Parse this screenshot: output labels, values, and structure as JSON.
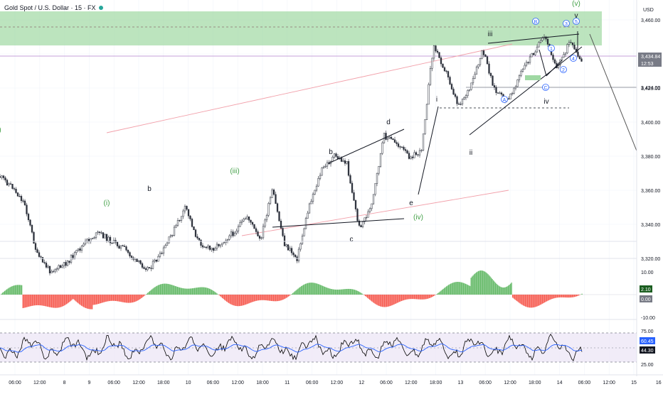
{
  "header": {
    "symbol_title": "Gold Spot / U.S. Dollar · 15 · FX",
    "currency": "USD"
  },
  "colors": {
    "zone_fill": "#9fd8a3",
    "candle": "#2a2e39",
    "pink_channel": "#f2a0aa",
    "purple_line": "#c4a0d8",
    "wave_green": "#43a047",
    "wave_blue": "#2962ff",
    "hist_pos": "#4caf50",
    "hist_neg": "#f44336",
    "rsi_line": "#000000",
    "rsi_ma": "#2962ff",
    "rsi_band": "#ede7f6"
  },
  "price_axis": {
    "ticks": [
      "3,460.00",
      "3,440.00",
      "3,420.00",
      "3,400.00",
      "3,380.00",
      "3,360.00",
      "3,340.00",
      "3,320.00"
    ],
    "last_price": "3,434.84",
    "countdown": "12:53",
    "ref_price": "3,424.00"
  },
  "osc_axis": {
    "ticks": [
      "10.00",
      "-10.00"
    ],
    "value_1": "2.10",
    "value_2": "0.00"
  },
  "rsi_axis": {
    "ticks": [
      "75.00",
      "25.00"
    ],
    "value_1": "60.45",
    "value_2": "44.30"
  },
  "time_axis": {
    "labels": [
      "06:00",
      "12:00",
      "8",
      "9",
      "06:00",
      "12:00",
      "18:00",
      "10",
      "06:00",
      "12:00",
      "18:00",
      "11",
      "06:00",
      "12:00",
      "12",
      "06:00",
      "12:00",
      "18:00",
      "13",
      "06:00",
      "12:00",
      "18:00",
      "14",
      "06:00",
      "12:00",
      "15",
      "16",
      "06:00"
    ]
  },
  "wave_labels": [
    {
      "text": "(v)",
      "color": "green"
    },
    {
      "text": "v",
      "color": "dark"
    },
    {
      "text": "iii",
      "color": "dark"
    },
    {
      "text": "B",
      "color": "blue"
    },
    {
      "text": "3",
      "color": "blue"
    },
    {
      "text": "5",
      "color": "blue"
    },
    {
      "text": "1",
      "color": "blue"
    },
    {
      "text": "4",
      "color": "blue"
    },
    {
      "text": "2",
      "color": "blue"
    },
    {
      "text": "A",
      "color": "blue"
    },
    {
      "text": "C",
      "color": "blue"
    },
    {
      "text": "iv",
      "color": "dark"
    },
    {
      "text": "i",
      "color": "dark"
    },
    {
      "text": "ii",
      "color": "dark"
    },
    {
      "text": "d",
      "color": "dark"
    },
    {
      "text": "b",
      "color": "dark"
    },
    {
      "text": "e",
      "color": "dark"
    },
    {
      "text": "(iv)",
      "color": "green"
    },
    {
      "text": "c",
      "color": "dark"
    },
    {
      "text": "(iii)",
      "color": "green"
    },
    {
      "text": "(i)",
      "color": "green"
    },
    {
      "text": "b",
      "color": "dark"
    },
    {
      "text": ")",
      "color": "green"
    }
  ],
  "chart_data": {
    "type": "candlestick",
    "title": "Gold Spot / U.S. Dollar · 15 · FX",
    "ylabel": "USD",
    "ylim": [
      3310,
      3475
    ],
    "price_path": [
      [
        "Aug 7 00:00",
        3368
      ],
      [
        "Aug 7 06:00",
        3362
      ],
      [
        "Aug 7 09:00",
        3352
      ],
      [
        "Aug 7 12:00",
        3322
      ],
      [
        "Aug 7 18:00",
        3313
      ],
      [
        "Aug 8 00:00",
        3315
      ],
      [
        "Aug 8 06:00",
        3322
      ],
      [
        "Aug 8 12:00",
        3330
      ],
      [
        "Aug 8 18:00",
        3335
      ],
      [
        "Aug 9 00:00",
        3330
      ],
      [
        "Aug 9 06:00",
        3326
      ],
      [
        "Aug 9 12:00",
        3318
      ],
      [
        "Aug 9 18:00",
        3314
      ],
      [
        "Aug 10 00:00",
        3322
      ],
      [
        "Aug 10 06:00",
        3336
      ],
      [
        "Aug 10 08:00",
        3350
      ],
      [
        "Aug 10 12:00",
        3330
      ],
      [
        "Aug 10 18:00",
        3325
      ],
      [
        "Aug 11 00:00",
        3330
      ],
      [
        "Aug 11 06:00",
        3336
      ],
      [
        "Aug 11 09:00",
        3345
      ],
      [
        "Aug 11 12:00",
        3330
      ],
      [
        "Aug 11 15:00",
        3360
      ],
      [
        "Aug 11 18:00",
        3328
      ],
      [
        "Aug 11 21:00",
        3320
      ],
      [
        "Aug 12 00:00",
        3352
      ],
      [
        "Aug 12 03:00",
        3372
      ],
      [
        "Aug 12 05:00",
        3380
      ],
      [
        "Aug 12 08:00",
        3376
      ],
      [
        "Aug 12 09:00",
        3338
      ],
      [
        "Aug 12 12:00",
        3350
      ],
      [
        "Aug 12 15:00",
        3392
      ],
      [
        "Aug 12 18:00",
        3388
      ],
      [
        "Aug 12 21:00",
        3380
      ],
      [
        "Aug 13 00:00",
        3382
      ],
      [
        "Aug 13 03:00",
        3445
      ],
      [
        "Aug 13 06:00",
        3430
      ],
      [
        "Aug 13 09:00",
        3410
      ],
      [
        "Aug 13 12:00",
        3420
      ],
      [
        "Aug 13 15:00",
        3442
      ],
      [
        "Aug 13 18:00",
        3418
      ],
      [
        "Aug 14 00:00",
        3412
      ],
      [
        "Aug 14 03:00",
        3428
      ],
      [
        "Aug 14 06:00",
        3440
      ],
      [
        "Aug 14 09:00",
        3450
      ],
      [
        "Aug 14 12:00",
        3432
      ],
      [
        "Aug 14 15:00",
        3447
      ],
      [
        "Aug 14 18:00",
        3434
      ]
    ],
    "zones": [
      {
        "label": "resistance zone",
        "from": 3442,
        "to": 3468
      }
    ],
    "levels": [
      3434.84,
      3424,
      3414,
      3398
    ],
    "projection": {
      "from": [
        "Aug 15 00:00",
        3452
      ],
      "to": [
        "Aug 16 06:00",
        3365
      ]
    },
    "oscillator": {
      "axis_ticks": [
        10,
        -10
      ],
      "last_values": [
        2.1,
        0.0
      ]
    },
    "rsi": {
      "axis_ticks": [
        75,
        25
      ],
      "last_values": [
        60.45,
        44.3
      ]
    }
  }
}
